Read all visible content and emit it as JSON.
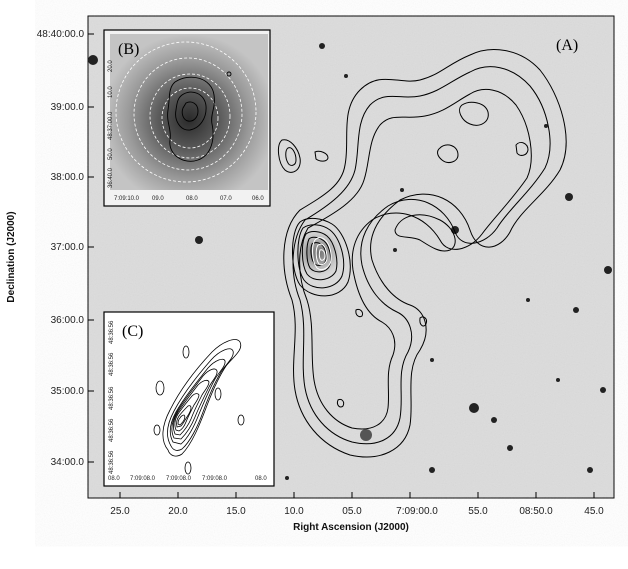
{
  "figure": {
    "xlabel": "Right Ascension (J2000)",
    "ylabel": "Declination (J2000)",
    "x_ticks": [
      "25.0",
      "20.0",
      "15.0",
      "10.0",
      "05.0",
      "7:09:00.0",
      "55.0",
      "08:50.0",
      "45.0"
    ],
    "y_ticks": [
      "48:40:00.0",
      "39:00.0",
      "38:00.0",
      "37:00.0",
      "36:00.0",
      "35:00.0",
      "34:00.0"
    ],
    "panel_a_label": "(A)",
    "panel_b": {
      "label": "(B)",
      "x_ticks": [
        "7:09:10.0",
        "09.0",
        "08.0",
        "07.0",
        "06.0"
      ],
      "y_ticks": [
        "20.0",
        "10.0",
        "48:37:00.0",
        "50.0",
        "36:40.0"
      ]
    },
    "panel_c": {
      "label": "(C)",
      "x_ticks": [
        "08.0",
        "7:09:08.0",
        "7:09:08.0",
        "7:09:08.0",
        "08.0"
      ],
      "y_ticks": [
        "48:36:56",
        "48:36:56",
        "48:36:56",
        "48:36:56",
        "48:36:56"
      ]
    }
  }
}
